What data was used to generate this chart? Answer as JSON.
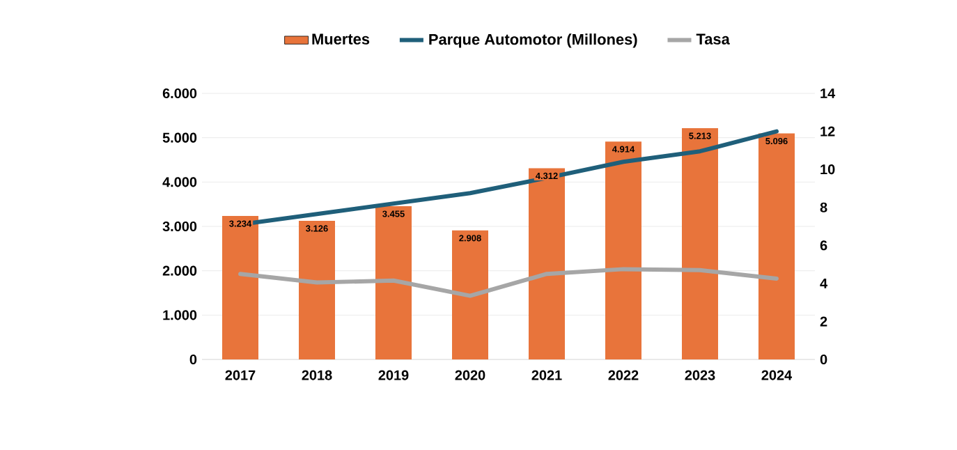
{
  "chart_data": {
    "type": "bar",
    "categories": [
      "2017",
      "2018",
      "2019",
      "2020",
      "2021",
      "2022",
      "2023",
      "2024"
    ],
    "series": [
      {
        "name": "Muertes",
        "color": "#e8743b",
        "values": [
          3234,
          3126,
          3455,
          2908,
          4312,
          4914,
          5213,
          5096
        ],
        "value_labels": [
          "3.234",
          "3.126",
          "3.455",
          "2.908",
          "4.312",
          "4.914",
          "5.213",
          "5.096"
        ]
      },
      {
        "name": "Parque Automotor (Millones)",
        "type": "line",
        "axis": "y2",
        "color": "#1f5f7a",
        "values": [
          7.1,
          7.65,
          8.2,
          8.75,
          9.55,
          10.4,
          10.95,
          12.0
        ]
      },
      {
        "name": "Tasa",
        "type": "line",
        "axis": "y2",
        "color": "#a6a6a6",
        "values": [
          4.5,
          4.05,
          4.15,
          3.35,
          4.5,
          4.75,
          4.7,
          4.25
        ]
      }
    ],
    "ylim": [
      0,
      6000
    ],
    "yticks": [
      {
        "value": 0,
        "label": "0"
      },
      {
        "value": 1000,
        "label": "1.000"
      },
      {
        "value": 2000,
        "label": "2.000"
      },
      {
        "value": 3000,
        "label": "3.000"
      },
      {
        "value": 4000,
        "label": "4.000"
      },
      {
        "value": 5000,
        "label": "5.000"
      },
      {
        "value": 6000,
        "label": "6.000"
      }
    ],
    "y2lim": [
      0,
      14
    ],
    "y2ticks": [
      0,
      2,
      4,
      6,
      8,
      10,
      12,
      14
    ],
    "grid": "y",
    "legend": "top"
  }
}
